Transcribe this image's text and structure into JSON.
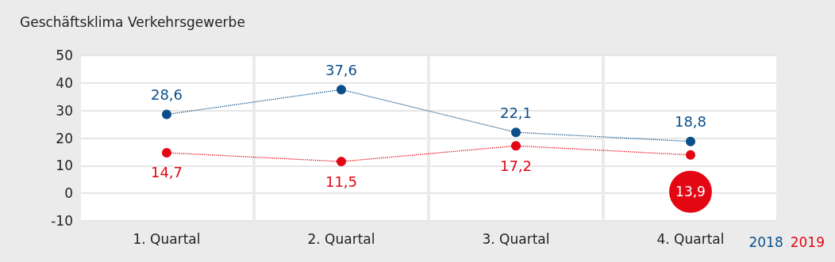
{
  "chart_data": {
    "type": "line",
    "title": "Geschäftsklima Verkehrsgewerbe",
    "categories": [
      "1. Quartal",
      "2. Quartal",
      "3. Quartal",
      "4. Quartal"
    ],
    "series": [
      {
        "name": "2018",
        "color": "#0b4f8a",
        "values": [
          28.6,
          37.6,
          22.1,
          18.8
        ],
        "value_labels": [
          "28,6",
          "37,6",
          "22,1",
          "18,8"
        ]
      },
      {
        "name": "2019",
        "color": "#e30613",
        "values": [
          14.7,
          11.5,
          17.2,
          13.9
        ],
        "value_labels": [
          "14,7",
          "11,5",
          "17,2",
          "13,9"
        ]
      }
    ],
    "ylim": [
      -10,
      50
    ],
    "yticks": [
      -10,
      0,
      10,
      20,
      30,
      40,
      50
    ],
    "grid": true,
    "legend": "bottom right",
    "marker": "circle",
    "line_style": "dotted"
  }
}
